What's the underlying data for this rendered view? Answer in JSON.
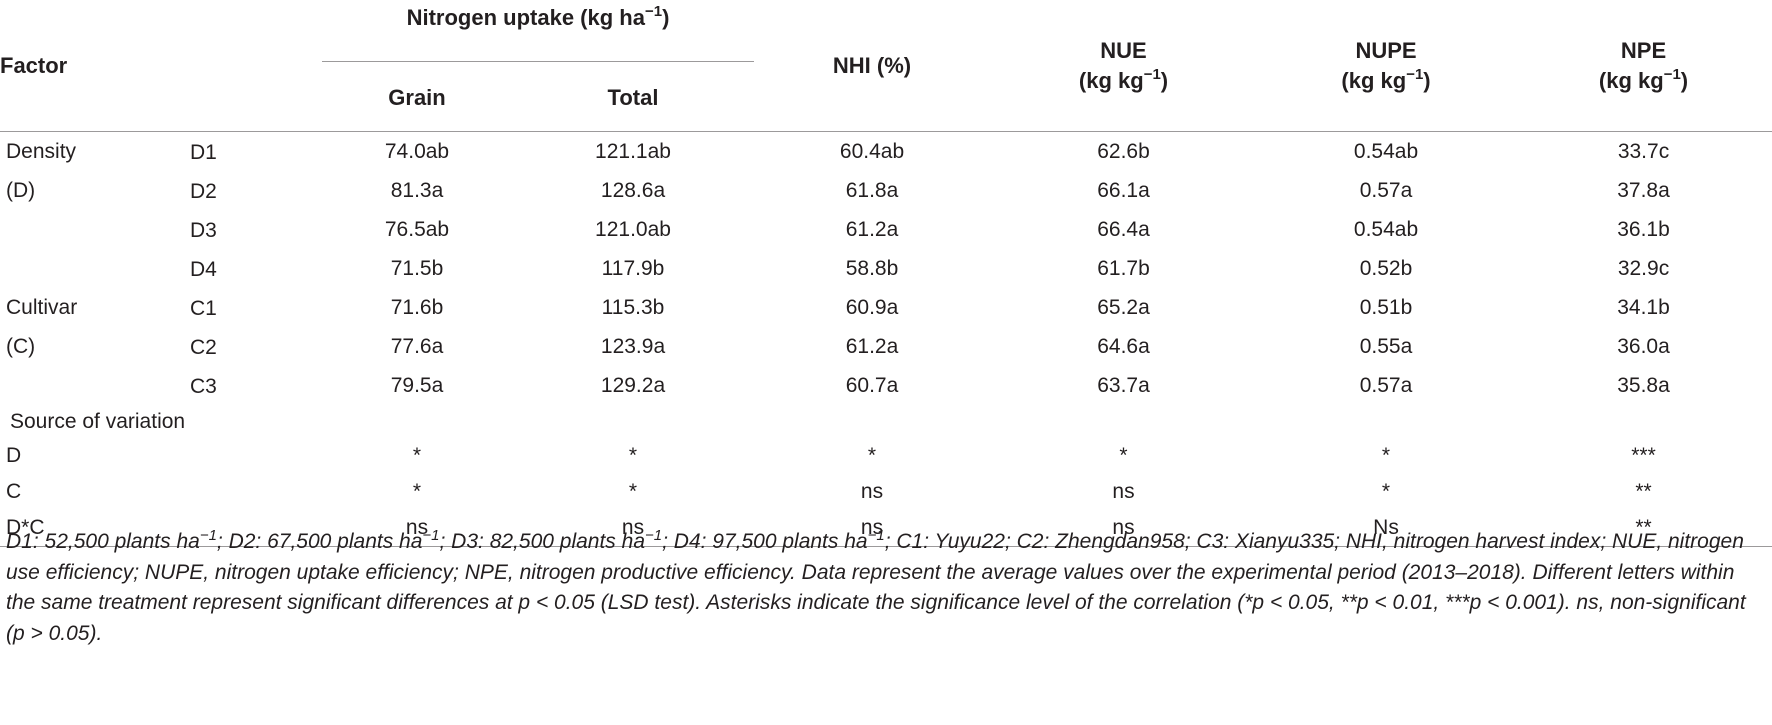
{
  "headers": {
    "factor": "Factor",
    "n_uptake": "Nitrogen uptake (kg ha",
    "n_uptake_sup": "−1",
    "n_uptake_close": ")",
    "grain": "Grain",
    "total": "Total",
    "nhi": "NHI (%)",
    "nue": "NUE",
    "nupe": "NUPE",
    "npe": "NPE",
    "unit": "(kg kg",
    "unit_sup": "−1",
    "unit_close": ")"
  },
  "rows": [
    {
      "factor": "Density",
      "level": "D1",
      "grain": "74.0ab",
      "total": "121.1ab",
      "nhi": "60.4ab",
      "nue": "62.6b",
      "nupe": "0.54ab",
      "npe": "33.7c"
    },
    {
      "factor": "(D)",
      "level": "D2",
      "grain": "81.3a",
      "total": "128.6a",
      "nhi": "61.8a",
      "nue": "66.1a",
      "nupe": "0.57a",
      "npe": "37.8a"
    },
    {
      "factor": "",
      "level": "D3",
      "grain": "76.5ab",
      "total": "121.0ab",
      "nhi": "61.2a",
      "nue": "66.4a",
      "nupe": "0.54ab",
      "npe": "36.1b"
    },
    {
      "factor": "",
      "level": "D4",
      "grain": "71.5b",
      "total": "117.9b",
      "nhi": "58.8b",
      "nue": "61.7b",
      "nupe": "0.52b",
      "npe": "32.9c"
    },
    {
      "factor": "Cultivar",
      "level": "C1",
      "grain": "71.6b",
      "total": "115.3b",
      "nhi": "60.9a",
      "nue": "65.2a",
      "nupe": "0.51b",
      "npe": "34.1b"
    },
    {
      "factor": "(C)",
      "level": "C2",
      "grain": "77.6a",
      "total": "123.9a",
      "nhi": "61.2a",
      "nue": "64.6a",
      "nupe": "0.55a",
      "npe": "36.0a"
    },
    {
      "factor": "",
      "level": "C3",
      "grain": "79.5a",
      "total": "129.2a",
      "nhi": "60.7a",
      "nue": "63.7a",
      "nupe": "0.57a",
      "npe": "35.8a"
    }
  ],
  "source_label": "Source of variation",
  "sig_rows": [
    {
      "factor": "D",
      "grain": "*",
      "total": "*",
      "nhi": "*",
      "nue": "*",
      "nupe": "*",
      "npe": "***"
    },
    {
      "factor": "C",
      "grain": "*",
      "total": "*",
      "nhi": "ns",
      "nue": "ns",
      "nupe": "*",
      "npe": "**"
    },
    {
      "factor": "D*C",
      "grain": "ns",
      "total": "ns",
      "nhi": "ns",
      "nue": "ns",
      "nupe": "Ns",
      "npe": "**"
    }
  ],
  "footnote": {
    "d1": "D1: 52,500 plants ha",
    "d2": "; D2: 67,500 plants ha",
    "d3": "; D3: 82,500 plants ha",
    "d4": "; D4: 97,500 plants ha",
    "sup": "−1",
    "rest": "; C1: Yuyu22; C2: Zhengdan958; C3: Xianyu335; NHI, nitrogen harvest index; NUE, nitrogen use efficiency; NUPE, nitrogen uptake efficiency; NPE, nitrogen productive efficiency. Data represent the average values over the experimental period (2013–2018). Different letters within the same treatment represent significant differences at p < 0.05 (LSD test). Asterisks indicate the significance level of the correlation (*p < 0.05, **p < 0.01, ***p < 0.001). ns, non-significant (p > 0.05)."
  }
}
